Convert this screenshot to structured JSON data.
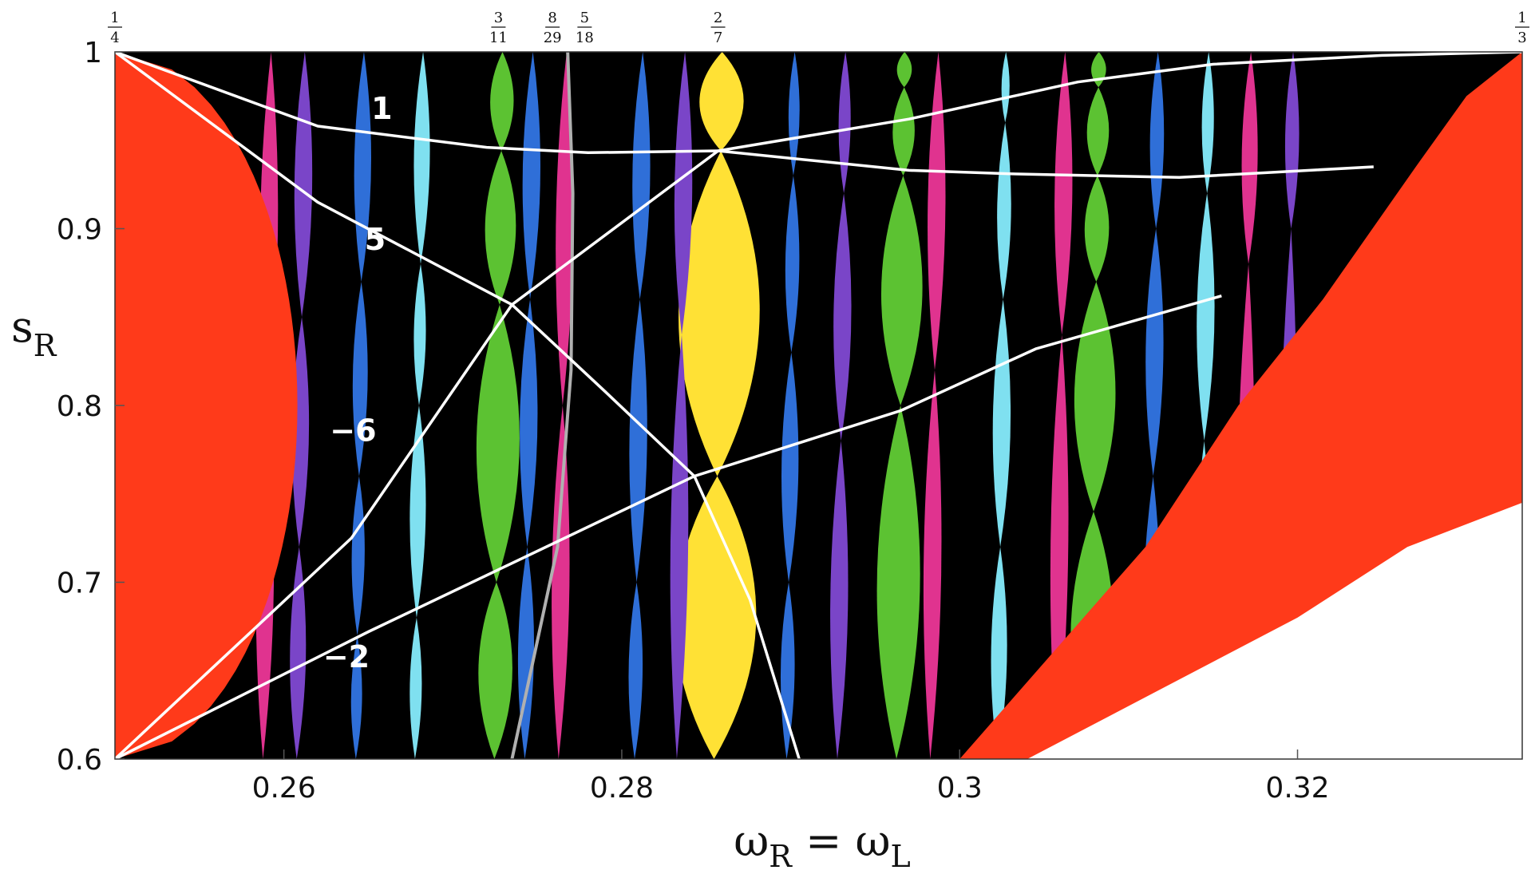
{
  "chart_data": {
    "type": "heatmap",
    "title": "",
    "xlabel": {
      "main": "ω",
      "sub1": "R",
      "eq": " = ω",
      "sub2": "L"
    },
    "ylabel": {
      "main": "s",
      "sub": "R"
    },
    "xlim": [
      0.25,
      0.3333
    ],
    "ylim": [
      0.6,
      1.0
    ],
    "x_ticks": [
      {
        "value": 0.26,
        "label": "0.26"
      },
      {
        "value": 0.28,
        "label": "0.28"
      },
      {
        "value": 0.3,
        "label": "0.3"
      },
      {
        "value": 0.32,
        "label": "0.32"
      }
    ],
    "y_ticks": [
      {
        "value": 0.6,
        "label": "0.6"
      },
      {
        "value": 0.7,
        "label": "0.7"
      },
      {
        "value": 0.8,
        "label": "0.8"
      },
      {
        "value": 0.9,
        "label": "0.9"
      },
      {
        "value": 1.0,
        "label": "1"
      }
    ],
    "top_fractions": [
      {
        "value": 0.25,
        "num": "1",
        "den": "4"
      },
      {
        "value": 0.2727,
        "num": "3",
        "den": "11"
      },
      {
        "value": 0.2759,
        "num": "8",
        "den": "29"
      },
      {
        "value": 0.2778,
        "num": "5",
        "den": "18"
      },
      {
        "value": 0.2857,
        "num": "2",
        "den": "7"
      },
      {
        "value": 0.3333,
        "num": "1",
        "den": "3"
      }
    ],
    "colors": {
      "background": "#000000",
      "red_region": "#ff3a1a",
      "white_region": "#ffffff",
      "tongue_2_7": "#ffe135",
      "tongue_3_11": "#5cc232",
      "tongue_cyan": "#7fe0f0",
      "tongue_blue": "#2f6fd8",
      "tongue_magenta": "#e0338f",
      "tongue_purple": "#7a45c8",
      "curve": "#ffffff",
      "gray_curve": "#b0b0b0"
    },
    "tongues": [
      {
        "rational": "2/7",
        "x": 0.2857,
        "color": "tongue_2_7",
        "nodes": [
          0.6,
          0.76,
          0.944,
          1.0
        ]
      },
      {
        "rational": "3/11",
        "x": 0.2727,
        "color": "tongue_3_11",
        "nodes": [
          0.6,
          0.7,
          0.857,
          0.944,
          1.0
        ]
      },
      {
        "rational": "",
        "x": 0.2965,
        "color": "tongue_3_11",
        "nodes": [
          0.6,
          0.8,
          0.93,
          0.98,
          1.0
        ]
      },
      {
        "rational": "",
        "x": 0.308,
        "color": "tongue_3_11",
        "nodes": [
          0.6,
          0.74,
          0.87,
          0.93,
          0.98,
          1.0
        ]
      },
      {
        "rational": "",
        "x": 0.268,
        "color": "tongue_cyan",
        "nodes": [
          0.6,
          0.68,
          0.8,
          0.88,
          1.0
        ]
      },
      {
        "rational": "",
        "x": 0.2645,
        "color": "tongue_blue",
        "nodes": [
          0.6,
          0.67,
          0.76,
          0.87,
          1.0
        ]
      },
      {
        "rational": "",
        "x": 0.3025,
        "color": "tongue_cyan",
        "nodes": [
          0.6,
          0.72,
          0.86,
          0.96,
          1.0
        ]
      },
      {
        "rational": "",
        "x": 0.29,
        "color": "tongue_blue",
        "nodes": [
          0.6,
          0.7,
          0.83,
          0.93,
          1.0
        ]
      },
      {
        "rational": "",
        "x": 0.281,
        "color": "tongue_blue",
        "nodes": [
          0.6,
          0.7,
          0.86,
          1.0
        ]
      },
      {
        "rational": "",
        "x": 0.2745,
        "color": "tongue_blue",
        "nodes": [
          0.6,
          0.72,
          0.86,
          1.0
        ]
      },
      {
        "rational": "",
        "x": 0.3115,
        "color": "tongue_blue",
        "nodes": [
          0.6,
          0.76,
          0.9,
          1.0
        ]
      },
      {
        "rational": "",
        "x": 0.3145,
        "color": "tongue_cyan",
        "nodes": [
          0.6,
          0.78,
          0.92,
          1.0
        ]
      },
      {
        "rational": "",
        "x": 0.261,
        "color": "tongue_purple",
        "nodes": [
          0.6,
          0.72,
          0.85,
          1.0
        ]
      },
      {
        "rational": "",
        "x": 0.293,
        "color": "tongue_purple",
        "nodes": [
          0.6,
          0.78,
          0.92,
          1.0
        ]
      },
      {
        "rational": "",
        "x": 0.259,
        "color": "tongue_magenta",
        "nodes": [
          0.6,
          0.8,
          1.0
        ]
      },
      {
        "rational": "",
        "x": 0.2765,
        "color": "tongue_magenta",
        "nodes": [
          0.6,
          0.8,
          1.0
        ]
      },
      {
        "rational": "",
        "x": 0.2835,
        "color": "tongue_purple",
        "nodes": [
          0.6,
          0.84,
          1.0
        ]
      },
      {
        "rational": "",
        "x": 0.2985,
        "color": "tongue_magenta",
        "nodes": [
          0.6,
          0.82,
          1.0
        ]
      },
      {
        "rational": "",
        "x": 0.306,
        "color": "tongue_magenta",
        "nodes": [
          0.6,
          0.84,
          1.0
        ]
      },
      {
        "rational": "",
        "x": 0.317,
        "color": "tongue_magenta",
        "nodes": [
          0.6,
          0.88,
          1.0
        ]
      },
      {
        "rational": "",
        "x": 0.3195,
        "color": "tongue_purple",
        "nodes": [
          0.6,
          0.9,
          1.0
        ]
      }
    ],
    "curves": [
      {
        "label": "1",
        "label_at": [
          0.2658,
          0.962
        ],
        "points": [
          [
            0.25,
            1.0
          ],
          [
            0.262,
            0.958
          ],
          [
            0.272,
            0.946
          ],
          [
            0.278,
            0.943
          ],
          [
            0.2857,
            0.944
          ],
          [
            0.297,
            0.933
          ],
          [
            0.303,
            0.931
          ],
          [
            0.313,
            0.929
          ],
          [
            0.3245,
            0.935
          ]
        ]
      },
      {
        "label": "",
        "points": [
          [
            0.2857,
            0.944
          ],
          [
            0.297,
            0.962
          ],
          [
            0.307,
            0.983
          ],
          [
            0.315,
            0.993
          ],
          [
            0.325,
            0.998
          ],
          [
            0.3333,
            1.0
          ]
        ]
      },
      {
        "label": "5",
        "label_at": [
          0.2654,
          0.888
        ],
        "points": [
          [
            0.25,
            1.0
          ],
          [
            0.262,
            0.915
          ],
          [
            0.2735,
            0.857
          ],
          [
            0.279,
            0.808
          ],
          [
            0.2843,
            0.76
          ],
          [
            0.2876,
            0.69
          ],
          [
            0.2905,
            0.6
          ]
        ]
      },
      {
        "label": "-6",
        "label_at": [
          0.2641,
          0.78
        ],
        "points": [
          [
            0.25,
            0.6
          ],
          [
            0.264,
            0.725
          ],
          [
            0.2735,
            0.857
          ],
          [
            0.2857,
            0.944
          ]
        ]
      },
      {
        "label": "-2",
        "label_at": [
          0.2637,
          0.652
        ],
        "points": [
          [
            0.25,
            0.6
          ],
          [
            0.265,
            0.672
          ],
          [
            0.2843,
            0.76
          ],
          [
            0.2965,
            0.797
          ],
          [
            0.3045,
            0.832
          ],
          [
            0.3155,
            0.862
          ]
        ]
      }
    ],
    "gray_curve": [
      [
        0.2735,
        0.6
      ],
      [
        0.2762,
        0.72
      ],
      [
        0.277,
        0.82
      ],
      [
        0.2771,
        0.92
      ],
      [
        0.2768,
        1.0
      ]
    ]
  }
}
